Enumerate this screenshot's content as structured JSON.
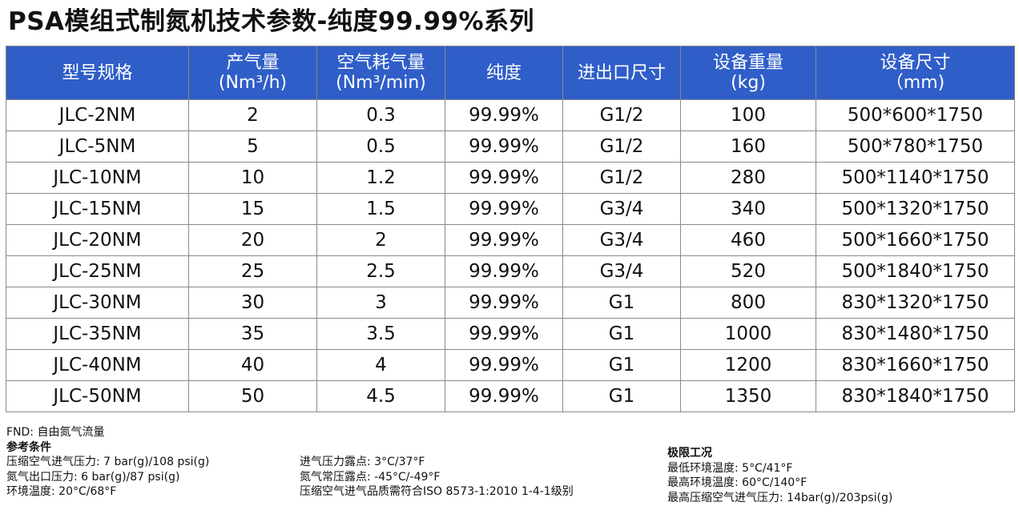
{
  "title": "PSA模组式制氮机技术参数-纯度99.99%系列",
  "table": {
    "headers": [
      [
        "型号规格",
        ""
      ],
      [
        "产气量",
        "(Nm³/h)"
      ],
      [
        "空气耗气量",
        "(Nm³/min)"
      ],
      [
        "纯度",
        ""
      ],
      [
        "进出口尺寸",
        ""
      ],
      [
        "设备重量",
        "(kg)"
      ],
      [
        "设备尺寸",
        "（mm)"
      ]
    ],
    "rows": [
      [
        "JLC-2NM",
        "2",
        "0.3",
        "99.99%",
        "G1/2",
        "100",
        "500*600*1750"
      ],
      [
        "JLC-5NM",
        "5",
        "0.5",
        "99.99%",
        "G1/2",
        "160",
        "500*780*1750"
      ],
      [
        "JLC-10NM",
        "10",
        "1.2",
        "99.99%",
        "G1/2",
        "280",
        "500*1140*1750"
      ],
      [
        "JLC-15NM",
        "15",
        "1.5",
        "99.99%",
        "G3/4",
        "340",
        "500*1320*1750"
      ],
      [
        "JLC-20NM",
        "20",
        "2",
        "99.99%",
        "G3/4",
        "460",
        "500*1660*1750"
      ],
      [
        "JLC-25NM",
        "25",
        "2.5",
        "99.99%",
        "G3/4",
        "520",
        "500*1840*1750"
      ],
      [
        "JLC-30NM",
        "30",
        "3",
        "99.99%",
        "G1",
        "800",
        "830*1320*1750"
      ],
      [
        "JLC-35NM",
        "35",
        "3.5",
        "99.99%",
        "G1",
        "1000",
        "830*1480*1750"
      ],
      [
        "JLC-40NM",
        "40",
        "4",
        "99.99%",
        "G1",
        "1200",
        "830*1660*1750"
      ],
      [
        "JLC-50NM",
        "50",
        "4.5",
        "99.99%",
        "G1",
        "1350",
        "830*1840*1750"
      ]
    ]
  },
  "notes": {
    "fnd": "FND: 自由氮气流量",
    "reference_heading": "参考条件",
    "reference_col1": [
      "压缩空气进气压力: 7 bar(g)/108 psi(g)",
      "氮气出口压力: 6 bar(g)/87 psi(g)",
      "环境温度: 20°C/68°F"
    ],
    "reference_col2": [
      "进气压力露点: 3°C/37°F",
      "氮气常压露点: -45°C/-49°F",
      "压缩空气进气品质需符合ISO 8573-1:2010 1-4-1级别"
    ],
    "limits_heading": "极限工况",
    "limits": [
      "最低环境温度: 5°C/41°F",
      "最高环境温度: 60°C/140°F",
      "最高压缩空气进气压力: 14bar(g)/203psi(g)"
    ]
  },
  "colors": {
    "header_bg": "#2f5ec8",
    "header_text": "#ffffff",
    "grid": "#8a8a8a"
  }
}
